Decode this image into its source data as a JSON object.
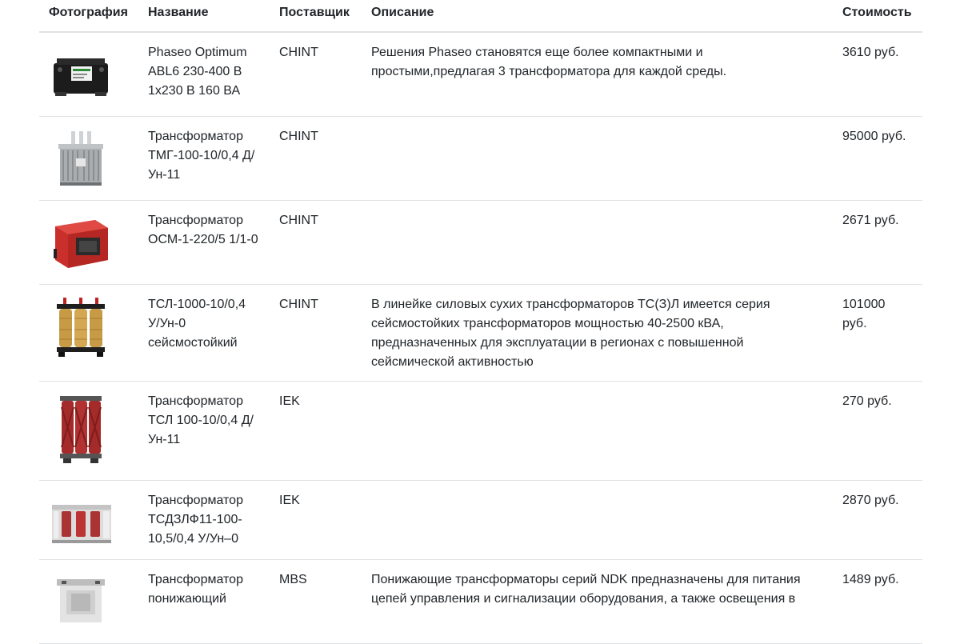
{
  "table": {
    "headers": {
      "photo": "Фотография",
      "name": "Название",
      "supplier": "Поставщик",
      "description": "Описание",
      "price": "Стоимость"
    },
    "rows": [
      {
        "name": "Phaseo Optimum ABL6 230-400 В 1х230 В 160 ВА",
        "supplier": "CHINT",
        "description": "Решения Phaseo становятся еще более компактными и простыми,предлагая 3 трансформатора для каждой среды.",
        "price": "3610 руб.",
        "image": "black-control-transformer-icon"
      },
      {
        "name": "Трансформатор ТМГ-100-10/0,4 Д/Ун-11",
        "supplier": "CHINT",
        "description": "",
        "price": "95000 руб.",
        "image": "oil-power-transformer-icon"
      },
      {
        "name": "Трансформатор ОСМ-1-220/5 1/1-0",
        "supplier": "CHINT",
        "description": "",
        "price": "2671 руб.",
        "image": "red-box-transformer-icon"
      },
      {
        "name": "ТСЛ-1000-10/0,4 У/Ун-0 сейсмостойкий",
        "supplier": "CHINT",
        "description": "В линейке силовых сухих трансформаторов ТС(З)Л имеется серия сейсмостойких трансформаторов мощностью 40-2500 кВА, предназначенных для эксплуатации в регионах с повышенной сейсмической активностью",
        "price": "101000 руб.",
        "image": "dry-coil-transformer-icon"
      },
      {
        "name": "Трансформатор ТСЛ 100-10/0,4 Д/Ун-11",
        "supplier": "IEK",
        "description": "",
        "price": "270 руб.",
        "image": "red-cast-resin-transformer-icon"
      },
      {
        "name": "Трансформатор ТСДЗЛФ11-100-10,5/0,4 У/Ун–0",
        "supplier": "IEK",
        "description": "",
        "price": "2870 руб.",
        "image": "enclosed-dry-transformer-icon"
      },
      {
        "name": "Трансформатор понижающий",
        "supplier": "MBS",
        "description": "Понижающие трансформаторы серий NDK предназначены для питания цепей управления и сигнализации оборудования, а также освещения в",
        "price": "1489 руб.",
        "image": "step-down-transformer-icon"
      }
    ]
  }
}
